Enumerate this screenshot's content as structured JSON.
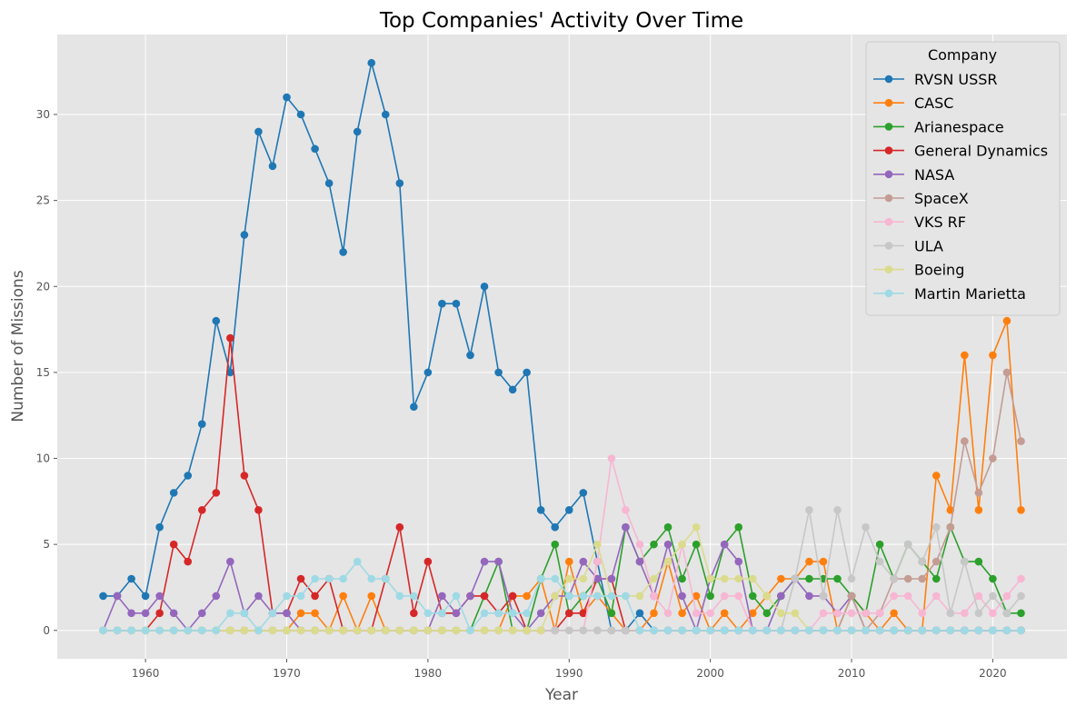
{
  "chart_data": {
    "type": "line",
    "title": "Top Companies' Activity Over Time",
    "xlabel": "Year",
    "ylabel": "Number of Missions",
    "xlim": [
      1953.75,
      2025.25
    ],
    "ylim": [
      -1.65,
      34.65
    ],
    "xticks": [
      1960,
      1970,
      1980,
      1990,
      2000,
      2010,
      2020
    ],
    "yticks": [
      0,
      5,
      10,
      15,
      20,
      25,
      30
    ],
    "grid": true,
    "legend": {
      "title": "Company",
      "placement": "top-right"
    },
    "x": [
      1957,
      1958,
      1959,
      1960,
      1961,
      1962,
      1963,
      1964,
      1965,
      1966,
      1967,
      1968,
      1969,
      1970,
      1971,
      1972,
      1973,
      1974,
      1975,
      1976,
      1977,
      1978,
      1979,
      1980,
      1981,
      1982,
      1983,
      1984,
      1985,
      1986,
      1987,
      1988,
      1989,
      1990,
      1991,
      1992,
      1993,
      1994,
      1995,
      1996,
      1997,
      1998,
      1999,
      2000,
      2001,
      2002,
      2003,
      2004,
      2005,
      2006,
      2007,
      2008,
      2009,
      2010,
      2011,
      2012,
      2013,
      2014,
      2015,
      2016,
      2017,
      2018,
      2019,
      2020,
      2021,
      2022
    ],
    "series": [
      {
        "name": "RVSN USSR",
        "color": "#1f77b4",
        "values": [
          2,
          2,
          3,
          2,
          6,
          8,
          9,
          12,
          18,
          15,
          23,
          29,
          27,
          31,
          30,
          28,
          26,
          22,
          29,
          33,
          30,
          26,
          13,
          15,
          19,
          19,
          16,
          20,
          15,
          14,
          15,
          7,
          6,
          7,
          8,
          4,
          0,
          0,
          1,
          0,
          0,
          0,
          0,
          0,
          0,
          0,
          0,
          0,
          0,
          0,
          0,
          0,
          0,
          0,
          0,
          0,
          0,
          0,
          0,
          0,
          0,
          0,
          0,
          0,
          0,
          0
        ]
      },
      {
        "name": "CASC",
        "color": "#ff7f0e",
        "values": [
          0,
          0,
          0,
          0,
          0,
          0,
          0,
          0,
          0,
          0,
          0,
          0,
          0,
          0,
          1,
          1,
          0,
          2,
          0,
          2,
          0,
          0,
          0,
          0,
          0,
          0,
          0,
          0,
          0,
          2,
          2,
          3,
          0,
          4,
          1,
          2,
          1,
          0,
          0,
          1,
          4,
          1,
          2,
          0,
          1,
          0,
          1,
          2,
          3,
          3,
          4,
          4,
          0,
          2,
          1,
          0,
          1,
          0,
          0,
          9,
          7,
          16,
          7,
          16,
          18,
          7
        ]
      },
      {
        "name": "Arianespace",
        "color": "#2ca02c",
        "values": [
          0,
          0,
          0,
          0,
          0,
          0,
          0,
          0,
          0,
          0,
          0,
          0,
          0,
          0,
          0,
          0,
          0,
          0,
          0,
          0,
          0,
          0,
          0,
          0,
          0,
          0,
          0,
          2,
          4,
          0,
          0,
          3,
          5,
          1,
          2,
          3,
          1,
          6,
          4,
          5,
          6,
          3,
          5,
          2,
          5,
          6,
          2,
          1,
          2,
          3,
          3,
          3,
          3,
          2,
          1,
          5,
          3,
          5,
          4,
          3,
          6,
          4,
          4,
          3,
          1,
          1
        ]
      },
      {
        "name": "General Dynamics",
        "color": "#d62728",
        "values": [
          0,
          0,
          0,
          0,
          1,
          5,
          4,
          7,
          8,
          17,
          9,
          7,
          1,
          1,
          3,
          2,
          3,
          0,
          0,
          0,
          3,
          6,
          1,
          4,
          1,
          1,
          2,
          2,
          1,
          2,
          0,
          0,
          0,
          1,
          1,
          3,
          3,
          0,
          0,
          0,
          0,
          0,
          0,
          0,
          0,
          0,
          0,
          0,
          0,
          0,
          0,
          0,
          0,
          0,
          0,
          0,
          0,
          0,
          0,
          0,
          0,
          0,
          0,
          0,
          0,
          0
        ]
      },
      {
        "name": "NASA",
        "color": "#9467bd",
        "values": [
          0,
          2,
          1,
          1,
          2,
          1,
          0,
          1,
          2,
          4,
          1,
          2,
          1,
          1,
          0,
          0,
          0,
          0,
          0,
          0,
          0,
          0,
          0,
          0,
          2,
          1,
          2,
          4,
          4,
          1,
          0,
          1,
          2,
          2,
          4,
          3,
          3,
          6,
          4,
          2,
          5,
          2,
          0,
          3,
          5,
          4,
          0,
          0,
          2,
          3,
          2,
          2,
          1,
          2,
          0,
          0,
          0,
          0,
          0,
          0,
          0,
          0,
          0,
          0,
          0,
          0
        ]
      },
      {
        "name": "SpaceX",
        "color": "#c49c94",
        "values": [
          0,
          0,
          0,
          0,
          0,
          0,
          0,
          0,
          0,
          0,
          0,
          0,
          0,
          0,
          0,
          0,
          0,
          0,
          0,
          0,
          0,
          0,
          0,
          0,
          0,
          0,
          0,
          0,
          0,
          0,
          0,
          0,
          0,
          0,
          0,
          0,
          0,
          0,
          0,
          0,
          0,
          0,
          0,
          0,
          0,
          0,
          0,
          0,
          0,
          0,
          0,
          0,
          0,
          2,
          0,
          1,
          3,
          3,
          3,
          4,
          6,
          11,
          8,
          10,
          15,
          11
        ]
      },
      {
        "name": "VKS RF",
        "color": "#f7b6d2",
        "values": [
          0,
          0,
          0,
          0,
          0,
          0,
          0,
          0,
          0,
          0,
          0,
          0,
          0,
          0,
          0,
          0,
          0,
          0,
          0,
          0,
          0,
          0,
          0,
          0,
          0,
          0,
          0,
          0,
          0,
          0,
          0,
          0,
          0,
          0,
          0,
          4,
          10,
          7,
          5,
          2,
          1,
          5,
          1,
          1,
          2,
          2,
          0,
          0,
          0,
          0,
          0,
          1,
          1,
          1,
          1,
          1,
          2,
          2,
          1,
          2,
          1,
          1,
          2,
          1,
          2,
          3
        ]
      },
      {
        "name": "ULA",
        "color": "#c7c7c7",
        "values": [
          0,
          0,
          0,
          0,
          0,
          0,
          0,
          0,
          0,
          0,
          0,
          0,
          0,
          0,
          0,
          0,
          0,
          0,
          0,
          0,
          0,
          0,
          0,
          0,
          0,
          0,
          0,
          0,
          0,
          0,
          0,
          0,
          0,
          0,
          0,
          0,
          0,
          0,
          0,
          0,
          0,
          0,
          0,
          0,
          0,
          0,
          0,
          0,
          0,
          3,
          7,
          2,
          7,
          3,
          6,
          4,
          3,
          5,
          4,
          6,
          1,
          4,
          1,
          2,
          1,
          2
        ]
      },
      {
        "name": "Boeing",
        "color": "#dbdb8d",
        "values": [
          0,
          0,
          0,
          0,
          0,
          0,
          0,
          0,
          0,
          0,
          0,
          0,
          0,
          0,
          0,
          0,
          0,
          0,
          0,
          0,
          0,
          0,
          0,
          0,
          0,
          0,
          0,
          0,
          0,
          0,
          0,
          0,
          2,
          3,
          3,
          5,
          2,
          2,
          2,
          3,
          4,
          5,
          6,
          3,
          3,
          3,
          3,
          2,
          1,
          1,
          0,
          0,
          0,
          0,
          0,
          0,
          0,
          0,
          0,
          0,
          0,
          0,
          0,
          0,
          0,
          0
        ]
      },
      {
        "name": "Martin Marietta",
        "color": "#9edae5",
        "values": [
          0,
          0,
          0,
          0,
          0,
          0,
          0,
          0,
          0,
          1,
          1,
          0,
          1,
          2,
          2,
          3,
          3,
          3,
          4,
          3,
          3,
          2,
          2,
          1,
          1,
          2,
          0,
          1,
          1,
          1,
          1,
          3,
          3,
          2,
          2,
          2,
          2,
          2,
          0,
          0,
          0,
          0,
          0,
          0,
          0,
          0,
          0,
          0,
          0,
          0,
          0,
          0,
          0,
          0,
          0,
          0,
          0,
          0,
          0,
          0,
          0,
          0,
          0,
          0,
          0,
          0
        ]
      }
    ]
  }
}
